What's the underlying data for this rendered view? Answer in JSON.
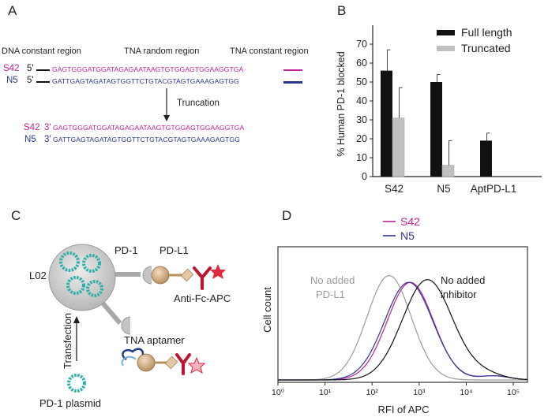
{
  "panels": {
    "a": "A",
    "b": "B",
    "c": "C",
    "d": "D"
  },
  "panel_a": {
    "region_labels": [
      "DNA constant region",
      "TNA random region",
      "TNA constant region"
    ],
    "s42_label": "S42",
    "n5_label": "N5",
    "five_prime": "5'",
    "three_prime": "3'",
    "s42_seq": "GAGTGGGATGGATAGAGAATAAGTGTGGAGTGGAAGGTGA",
    "n5_seq": "GATTGAGTAGATAGTGGTTCTGTACGTAGTGAAAGAGTGG",
    "truncation_label": "Truncation",
    "colors": {
      "s42": "#c0219a",
      "n5": "#2c3594"
    }
  },
  "chart_data": [
    {
      "type": "bar",
      "ylabel": "% Human PD-1 blocked",
      "xlabel": "",
      "categories": [
        "S42",
        "N5",
        "AptPD-L1"
      ],
      "series": [
        {
          "name": "Full length",
          "values": [
            56,
            50,
            19
          ],
          "errors": [
            11,
            4,
            4
          ],
          "color": "#111111"
        },
        {
          "name": "Truncated",
          "values": [
            31,
            6,
            null
          ],
          "errors": [
            16,
            13,
            null
          ],
          "color": "#c0c0c0"
        }
      ],
      "ylim": [
        0,
        80
      ],
      "yticks": [
        0,
        10,
        20,
        30,
        40,
        50,
        60,
        70
      ],
      "legend_position": "top-right"
    },
    {
      "type": "line",
      "xlabel": "RFI of APC",
      "ylabel": "Cell count",
      "x_scale": "log",
      "xlim": [
        1,
        200000
      ],
      "xticks": [
        "10⁰",
        "10¹",
        "10²",
        "10³",
        "10⁴",
        "10⁵"
      ],
      "series": [
        {
          "name": "S42",
          "color": "#c0219a",
          "peak_x": 650
        },
        {
          "name": "N5",
          "color": "#2c3594",
          "peak_x": 600
        },
        {
          "name": "No added PD-L1",
          "color": "#9a9a9a",
          "peak_x": 230
        },
        {
          "name": "No added inhibitor",
          "color": "#111111",
          "peak_x": 1500
        }
      ],
      "annotations": [
        "No added PD-L1",
        "No added inhibitor"
      ],
      "legend_position": "top-center"
    }
  ],
  "panel_c": {
    "cell_label": "L02",
    "pd1_label": "PD-1",
    "pdl1_label": "PD-L1",
    "antibody_label": "Anti-Fc-APC",
    "aptamer_label": "TNA aptamer",
    "transfection_label": "Transfection",
    "plasmid_label": "PD-1 plasmid"
  }
}
